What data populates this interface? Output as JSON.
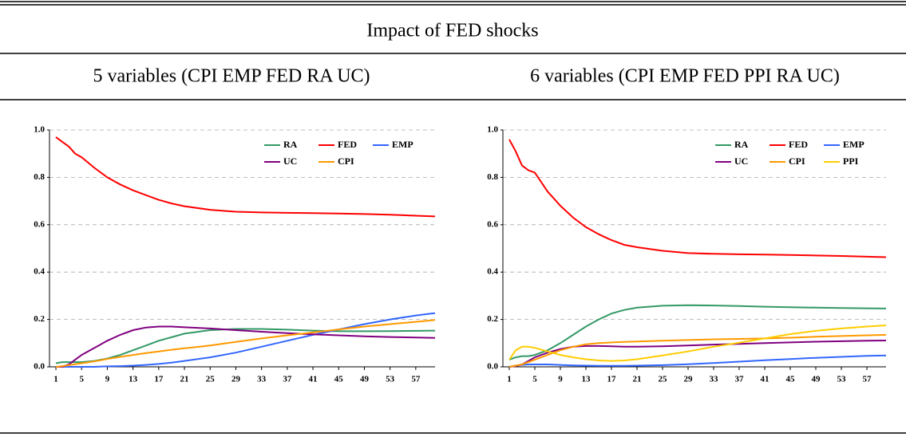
{
  "header": {
    "title": "Impact of FED shocks"
  },
  "chart_data": [
    {
      "type": "line",
      "title": "5 variables (CPI EMP FED RA UC)",
      "x": [
        1,
        2,
        3,
        4,
        5,
        7,
        9,
        11,
        13,
        15,
        17,
        19,
        21,
        25,
        29,
        33,
        37,
        41,
        45,
        49,
        53,
        57,
        60
      ],
      "xlim": [
        0,
        60
      ],
      "xticks": [
        1,
        5,
        9,
        13,
        17,
        21,
        25,
        29,
        33,
        37,
        41,
        45,
        49,
        53,
        57
      ],
      "ylim": [
        0,
        1
      ],
      "yticks": [
        {
          "value": 0,
          "label": "0.0"
        },
        0.2,
        0.4,
        0.6,
        0.8,
        {
          "value": 1,
          "label": "1.0"
        }
      ],
      "grid": true,
      "legend": "upper right",
      "series": [
        {
          "name": "RA",
          "color": "#339966",
          "values": [
            0.015,
            0.02,
            0.02,
            0.02,
            0.02,
            0.025,
            0.035,
            0.05,
            0.07,
            0.09,
            0.11,
            0.125,
            0.14,
            0.155,
            0.16,
            0.16,
            0.157,
            0.153,
            0.15,
            0.15,
            0.151,
            0.152,
            0.153
          ]
        },
        {
          "name": "FED",
          "color": "#ff0000",
          "values": [
            0.97,
            0.95,
            0.93,
            0.9,
            0.885,
            0.84,
            0.8,
            0.77,
            0.745,
            0.725,
            0.705,
            0.69,
            0.678,
            0.663,
            0.655,
            0.652,
            0.65,
            0.649,
            0.647,
            0.645,
            0.642,
            0.638,
            0.635
          ]
        },
        {
          "name": "EMP",
          "color": "#3366ff",
          "values": [
            0,
            0,
            0,
            0,
            0,
            0,
            0.002,
            0.003,
            0.005,
            0.008,
            0.012,
            0.018,
            0.025,
            0.04,
            0.06,
            0.085,
            0.11,
            0.135,
            0.158,
            0.18,
            0.2,
            0.217,
            0.227
          ]
        },
        {
          "name": "UC",
          "color": "#800080",
          "values": [
            0,
            0,
            0.01,
            0.03,
            0.05,
            0.08,
            0.11,
            0.135,
            0.155,
            0.166,
            0.17,
            0.17,
            0.167,
            0.162,
            0.155,
            0.148,
            0.142,
            0.137,
            0.133,
            0.129,
            0.126,
            0.124,
            0.122
          ]
        },
        {
          "name": "CPI",
          "color": "#ff9900",
          "values": [
            0,
            0.003,
            0.007,
            0.011,
            0.015,
            0.023,
            0.033,
            0.042,
            0.05,
            0.058,
            0.065,
            0.072,
            0.078,
            0.09,
            0.105,
            0.12,
            0.133,
            0.145,
            0.158,
            0.17,
            0.18,
            0.19,
            0.198
          ]
        }
      ]
    },
    {
      "type": "line",
      "title": "6 variables (CPI EMP FED PPI RA UC)",
      "x": [
        1,
        2,
        3,
        4,
        5,
        7,
        9,
        11,
        13,
        15,
        17,
        19,
        21,
        25,
        29,
        33,
        37,
        41,
        45,
        49,
        53,
        57,
        60
      ],
      "xlim": [
        0,
        60
      ],
      "xticks": [
        1,
        5,
        9,
        13,
        17,
        21,
        25,
        29,
        33,
        37,
        41,
        45,
        49,
        53,
        57
      ],
      "ylim": [
        0,
        1
      ],
      "yticks": [
        {
          "value": 0,
          "label": "0.0"
        },
        0.2,
        0.4,
        0.6,
        0.8,
        {
          "value": 1,
          "label": "1.0"
        }
      ],
      "grid": true,
      "legend": "upper right",
      "series": [
        {
          "name": "RA",
          "color": "#339966",
          "values": [
            0.03,
            0.04,
            0.045,
            0.045,
            0.05,
            0.07,
            0.1,
            0.135,
            0.17,
            0.2,
            0.225,
            0.24,
            0.25,
            0.258,
            0.26,
            0.259,
            0.257,
            0.254,
            0.252,
            0.25,
            0.248,
            0.247,
            0.246
          ]
        },
        {
          "name": "FED",
          "color": "#ff0000",
          "values": [
            0.96,
            0.91,
            0.85,
            0.83,
            0.82,
            0.74,
            0.68,
            0.63,
            0.59,
            0.56,
            0.535,
            0.515,
            0.505,
            0.49,
            0.48,
            0.477,
            0.475,
            0.474,
            0.472,
            0.47,
            0.468,
            0.465,
            0.463
          ]
        },
        {
          "name": "EMP",
          "color": "#3366ff",
          "values": [
            0,
            0.005,
            0.008,
            0.01,
            0.01,
            0.01,
            0.008,
            0.006,
            0.005,
            0.004,
            0.004,
            0.004,
            0.005,
            0.007,
            0.011,
            0.016,
            0.022,
            0.028,
            0.033,
            0.038,
            0.042,
            0.046,
            0.048
          ]
        },
        {
          "name": "UC",
          "color": "#800080",
          "values": [
            0,
            0.003,
            0.01,
            0.025,
            0.04,
            0.06,
            0.075,
            0.085,
            0.088,
            0.088,
            0.087,
            0.085,
            0.085,
            0.087,
            0.09,
            0.094,
            0.097,
            0.1,
            0.103,
            0.106,
            0.108,
            0.11,
            0.111
          ]
        },
        {
          "name": "CPI",
          "color": "#ff9900",
          "values": [
            0,
            0.005,
            0.01,
            0.02,
            0.03,
            0.05,
            0.07,
            0.085,
            0.095,
            0.1,
            0.103,
            0.105,
            0.107,
            0.11,
            0.113,
            0.116,
            0.118,
            0.12,
            0.123,
            0.127,
            0.13,
            0.133,
            0.135
          ]
        },
        {
          "name": "PPI",
          "color": "#ffcc00",
          "values": [
            0.03,
            0.07,
            0.085,
            0.085,
            0.08,
            0.065,
            0.05,
            0.04,
            0.032,
            0.027,
            0.025,
            0.027,
            0.032,
            0.048,
            0.065,
            0.085,
            0.102,
            0.12,
            0.138,
            0.152,
            0.162,
            0.17,
            0.175
          ]
        }
      ]
    }
  ]
}
